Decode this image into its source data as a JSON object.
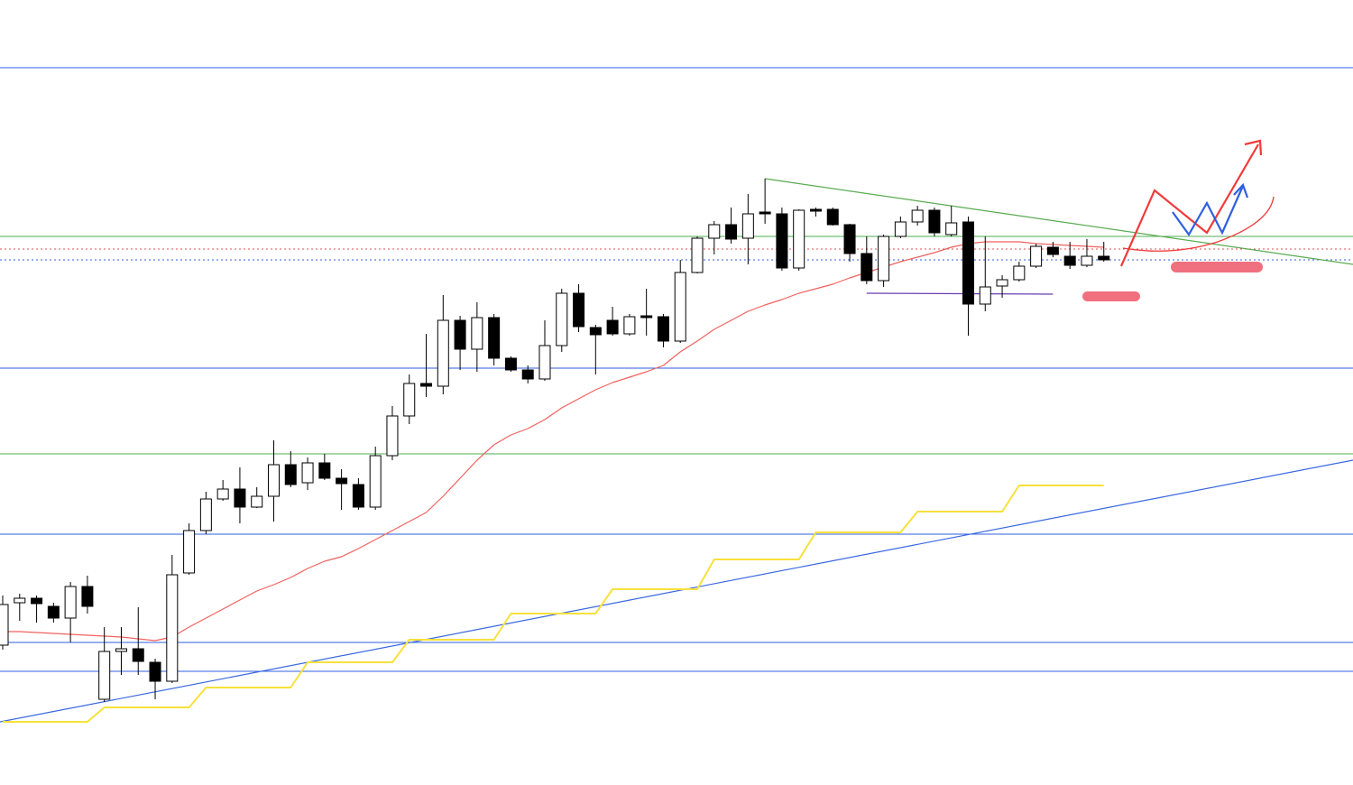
{
  "chart_data": {
    "type": "candlestick",
    "up_color": "#ffffff",
    "down_color": "#000000",
    "edge_color": "#000000",
    "open": [
      155,
      202,
      207,
      198,
      185,
      220,
      95,
      148,
      151,
      136,
      115,
      235,
      282,
      317,
      328,
      308,
      320,
      355,
      335,
      357,
      340,
      333,
      308,
      365,
      409,
      445,
      442,
      515,
      483,
      518,
      473,
      460,
      450,
      487,
      545,
      507,
      515,
      500,
      520,
      519,
      492,
      568,
      606,
      621,
      606,
      635,
      633,
      573,
      638,
      638,
      621,
      589,
      559,
      608,
      624,
      637,
      610,
      624,
      533,
      553,
      560,
      575,
      596,
      586,
      576,
      586
    ],
    "high": [
      210,
      212,
      210,
      202,
      225,
      232,
      175,
      175,
      197,
      140,
      255,
      290,
      325,
      338,
      352,
      330,
      382,
      370,
      363,
      367,
      350,
      340,
      375,
      420,
      455,
      500,
      543,
      520,
      535,
      522,
      475,
      465,
      515,
      550,
      555,
      510,
      530,
      522,
      550,
      522,
      582,
      608,
      625,
      640,
      655,
      672,
      640,
      638,
      640,
      640,
      622,
      608,
      610,
      630,
      642,
      640,
      642,
      630,
      608,
      565,
      580,
      600,
      602,
      602,
      605,
      602
    ],
    "low": [
      150,
      182,
      180,
      180,
      158,
      190,
      92,
      122,
      122,
      95,
      113,
      233,
      278,
      315,
      290,
      307,
      292,
      330,
      327,
      338,
      305,
      305,
      305,
      360,
      400,
      430,
      433,
      460,
      458,
      465,
      458,
      445,
      448,
      480,
      502,
      455,
      498,
      498,
      498,
      485,
      490,
      567,
      588,
      600,
      577,
      622,
      570,
      570,
      630,
      620,
      580,
      555,
      552,
      606,
      620,
      608,
      608,
      498,
      525,
      540,
      558,
      573,
      585,
      572,
      574,
      580
    ],
    "close": [
      200,
      207,
      201,
      185,
      220,
      198,
      148,
      151,
      137,
      115,
      233,
      282,
      317,
      328,
      308,
      320,
      355,
      333,
      357,
      340,
      334,
      308,
      365,
      409,
      445,
      442,
      515,
      483,
      518,
      473,
      460,
      450,
      487,
      545,
      508,
      499,
      500,
      519,
      518,
      492,
      568,
      606,
      621,
      605,
      633,
      633,
      573,
      637,
      636,
      621,
      589,
      559,
      608,
      624,
      637,
      612,
      623,
      533,
      552,
      560,
      575,
      597,
      588,
      576,
      586,
      582
    ],
    "lines": [
      {
        "color": "#f0625f",
        "values": [
          170,
          170,
          169,
          168,
          167,
          166,
          165,
          164,
          162,
          160,
          164,
          175,
          185,
          195,
          205,
          215,
          222,
          230,
          240,
          248,
          253,
          262,
          272,
          282,
          292,
          302,
          320,
          340,
          360,
          377,
          388,
          395,
          405,
          418,
          428,
          438,
          446,
          452,
          458,
          465,
          480,
          492,
          505,
          515,
          525,
          532,
          538,
          545,
          550,
          555,
          562,
          568,
          574,
          580,
          585,
          590,
          596,
          600,
          602,
          602,
          602,
          600,
          599,
          598,
          597,
          596
        ]
      },
      {
        "color": "#f7e13b",
        "values": [
          70,
          70,
          70,
          70,
          70,
          70,
          86,
          86,
          86,
          86,
          86,
          86,
          108,
          108,
          108,
          108,
          108,
          108,
          136,
          136,
          136,
          136,
          136,
          136,
          161,
          161,
          161,
          161,
          161,
          161,
          190,
          190,
          190,
          190,
          190,
          190,
          217,
          217,
          217,
          217,
          217,
          217,
          250,
          250,
          250,
          250,
          250,
          250,
          280,
          280,
          280,
          280,
          280,
          280,
          303,
          303,
          303,
          303,
          303,
          303,
          332,
          332,
          332,
          332,
          332,
          332
        ]
      }
    ],
    "hlines": [
      {
        "value": 795,
        "color": "#2f5fe0"
      },
      {
        "value": 462,
        "color": "#2f5fe0"
      },
      {
        "value": 278,
        "color": "#2f5fe0"
      },
      {
        "value": 158,
        "color": "#2f5fe0"
      },
      {
        "value": 126,
        "color": "#2f5fe0"
      },
      {
        "value": 608,
        "color": "#4caf50"
      },
      {
        "value": 367,
        "color": "#4caf50"
      },
      {
        "value": 594,
        "color": "#e05050",
        "dashed": true
      },
      {
        "value": 582,
        "color": "#2f5fe0",
        "dashed": true
      }
    ],
    "trendlines": [
      {
        "color": "#3a68e0",
        "x": [
          -0.16,
          79.71
        ],
        "values": [
          70,
          360
        ]
      },
      {
        "color": "#5aaa50",
        "x": [
          45,
          79.71
        ],
        "values": [
          672,
          577
        ]
      },
      {
        "color": "#6a3fb0",
        "x": [
          51,
          62
        ],
        "values": [
          545,
          544
        ]
      }
    ],
    "xlim": [
      -0.16,
      79.71
    ],
    "ylim": [
      0,
      870
    ]
  }
}
